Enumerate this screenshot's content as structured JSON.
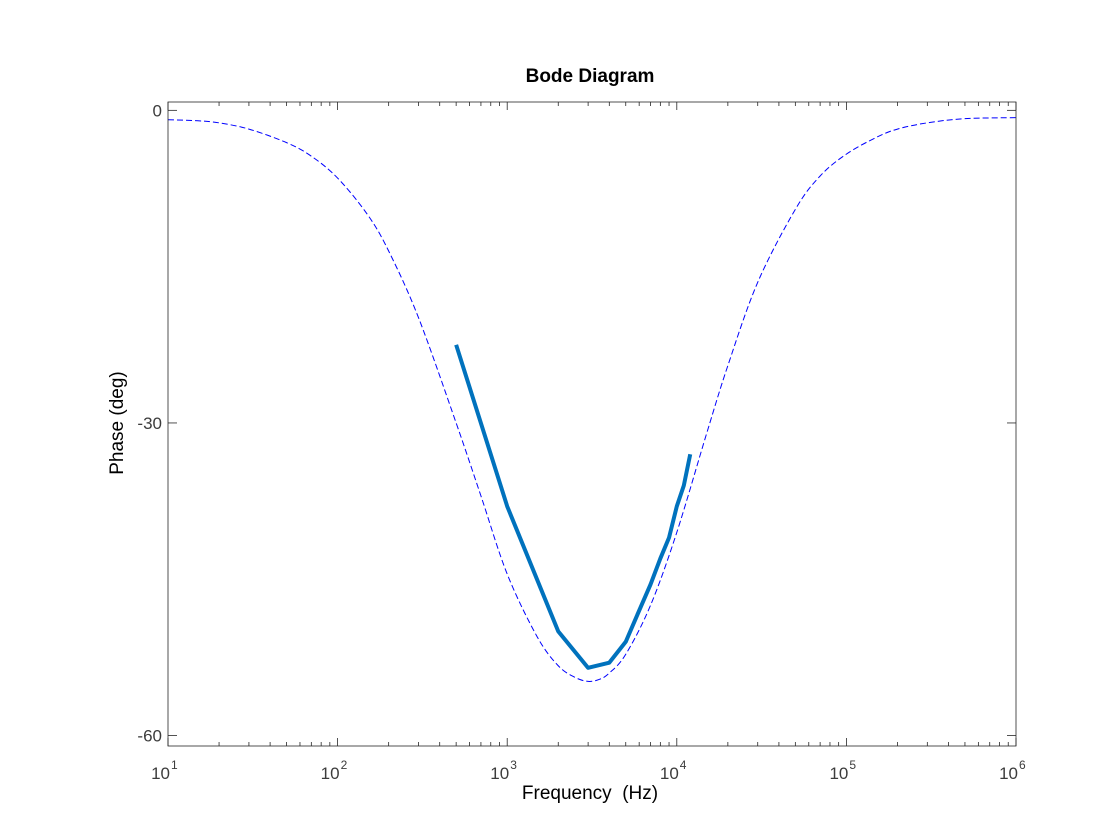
{
  "chart_data": {
    "type": "line",
    "title": "Bode Diagram",
    "xlabel": "Frequency  (Hz)",
    "ylabel": "Phase (deg)",
    "xscale": "log",
    "xlim": [
      10,
      1000000
    ],
    "ylim": [
      -61,
      0.8
    ],
    "grid": false,
    "x_ticks": [
      {
        "value": 10,
        "base": "10",
        "exp": "1"
      },
      {
        "value": 100,
        "base": "10",
        "exp": "2"
      },
      {
        "value": 1000,
        "base": "10",
        "exp": "3"
      },
      {
        "value": 10000,
        "base": "10",
        "exp": "4"
      },
      {
        "value": 100000,
        "base": "10",
        "exp": "5"
      },
      {
        "value": 1000000,
        "base": "10",
        "exp": "6"
      }
    ],
    "y_ticks": [
      {
        "value": 0,
        "label": "0"
      },
      {
        "value": -30,
        "label": "-30"
      },
      {
        "value": -60,
        "label": "-60"
      }
    ],
    "series": [
      {
        "style": "dashed",
        "color": "#0000ff",
        "x": [
          10,
          15,
          20,
          30,
          50,
          70,
          100,
          150,
          200,
          300,
          500,
          700,
          1000,
          1500,
          2000,
          2500,
          3000,
          3500,
          4000,
          5000,
          7000,
          10000,
          15000,
          20000,
          30000,
          50000,
          70000,
          100000,
          150000,
          200000,
          300000,
          500000,
          1000000
        ],
        "y": [
          -0.9,
          -1.0,
          -1.2,
          -1.8,
          -3.1,
          -4.4,
          -6.5,
          -10.0,
          -13.5,
          -19.9,
          -30.0,
          -37.0,
          -44.5,
          -50.5,
          -53.3,
          -54.4,
          -54.8,
          -54.6,
          -54.0,
          -52.2,
          -47.5,
          -40.5,
          -31.0,
          -24.5,
          -16.5,
          -9.5,
          -6.3,
          -4.2,
          -2.6,
          -1.8,
          -1.2,
          -0.8,
          -0.7
        ]
      },
      {
        "style": "solid",
        "color": "#0072bd",
        "x": [
          500,
          1000,
          2000,
          3000,
          4000,
          5000,
          6000,
          7000,
          8000,
          9000,
          10000,
          11000,
          12000
        ],
        "y": [
          -22.5,
          -38.0,
          -50.0,
          -53.5,
          -53.0,
          -51.0,
          -48.0,
          -45.5,
          -43.0,
          -41.0,
          -38.0,
          -36.0,
          -33.0
        ]
      }
    ]
  }
}
